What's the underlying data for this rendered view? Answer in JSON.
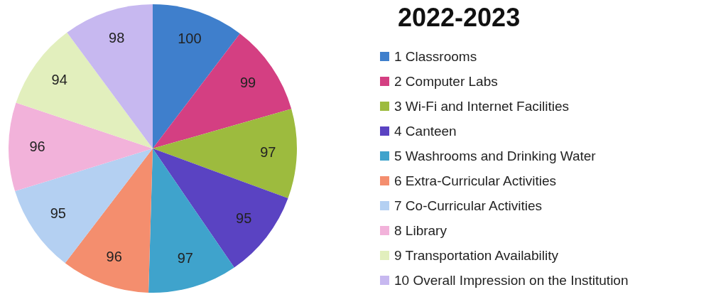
{
  "chart_data": {
    "type": "pie",
    "title": "2022-2023",
    "categories": [
      "1 Classrooms",
      "2 Computer Labs",
      "3 Wi-Fi and Internet Facilities",
      "4 Canteen",
      "5 Washrooms and Drinking Water",
      "6 Extra-Curricular Activities",
      "7 Co-Curricular Activities",
      "8 Library",
      "9 Transportation Availability",
      "10 Overall Impression on the Institution"
    ],
    "values": [
      100,
      99,
      97,
      95,
      97,
      96,
      95,
      96,
      94,
      98
    ],
    "colors": [
      "#3f7fcc",
      "#d43f82",
      "#9dbb3e",
      "#5a43c2",
      "#3fa3cc",
      "#f48e6e",
      "#b4d0f2",
      "#f2b2da",
      "#e2efbd",
      "#c7b8f0"
    ],
    "data_labels": true,
    "legend": "right"
  }
}
